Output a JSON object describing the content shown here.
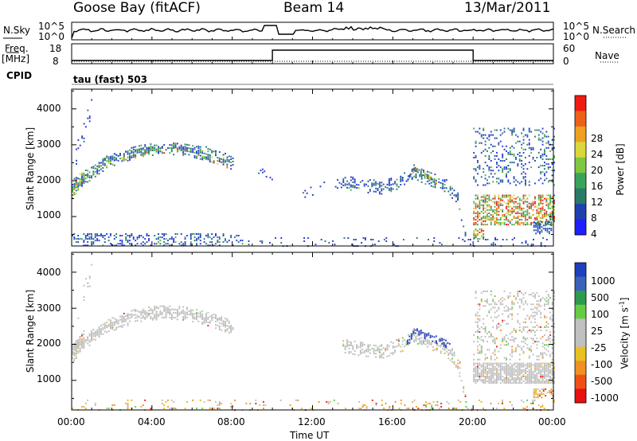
{
  "header": {
    "station": "Goose Bay (fitACF)",
    "beam": "Beam 14",
    "date": "13/Mar/2011"
  },
  "top_panels": {
    "nsky_label": "N.Sky",
    "nsky_ticks": [
      "10^5",
      "10^0"
    ],
    "nsearch_label": "N.Search",
    "nsearch_ticks": [
      "10^5",
      "10^0"
    ],
    "freq_label_1": "Freq.",
    "freq_label_2": "[MHz]",
    "freq_ticks": [
      "18",
      "8"
    ],
    "nave_label": "Nave",
    "nave_ticks": [
      "60",
      "0"
    ],
    "cpid_label": "CPID",
    "cpid_text": "tau (fast) 503"
  },
  "colorbars": {
    "power": {
      "label": "Power [dB]",
      "ticks": [
        "28",
        "24",
        "20",
        "16",
        "12",
        "8",
        "4"
      ],
      "colors": [
        "#1f1fff",
        "#2040b0",
        "#2a7a68",
        "#39a35a",
        "#7ec840",
        "#d9d83a",
        "#f0a020",
        "#ef6018",
        "#ee1c10"
      ]
    },
    "velocity": {
      "label": "Velocity [m s",
      "label_sup": "-1",
      "label_end": "]",
      "ticks": [
        "1000",
        "500",
        "100",
        "25",
        "-25",
        "-100",
        "-500",
        "-1000"
      ],
      "colors": [
        "#1f3fbf",
        "#3a62b8",
        "#2e9a4e",
        "#66cc44",
        "#c0c0c0",
        "#c0c0c0",
        "#e8c020",
        "#f09020",
        "#f05018",
        "#e81010"
      ]
    }
  },
  "axes": {
    "ylabel": "Slant Range [km]",
    "xlabel": "Time UT",
    "y_ticks": [
      1000,
      2000,
      3000,
      4000
    ],
    "x_ticks": [
      "00:00",
      "04:00",
      "08:00",
      "12:00",
      "16:00",
      "20:00",
      "00:00"
    ]
  },
  "chart_data": [
    {
      "type": "heatmap",
      "title": "",
      "xlabel": "",
      "ylabel": "Slant Range [km]",
      "x_range_hours": [
        0,
        24
      ],
      "ylim_km": [
        180,
        4550
      ],
      "colorbar": "Power [dB]",
      "regions": [
        {
          "kind": "band",
          "x": [
            0.0,
            0.5,
            1.0,
            1.5,
            2.0,
            2.5,
            3.0,
            3.5,
            4.0,
            4.5,
            5.0,
            5.5,
            6.0,
            6.5,
            7.0,
            7.5,
            8.0
          ],
          "y": [
            1900,
            2050,
            2250,
            2450,
            2600,
            2700,
            2800,
            2870,
            2900,
            2920,
            2920,
            2900,
            2850,
            2780,
            2700,
            2600,
            2500
          ],
          "half_width": 170,
          "density": 0.7,
          "weights": [
            0.3,
            0.35,
            0.25,
            0.1
          ]
        },
        {
          "kind": "band",
          "x": [
            0.0,
            0.3,
            0.6
          ],
          "y": [
            1750,
            1950,
            2200
          ],
          "half_width": 220,
          "density": 0.75,
          "weights": [
            0.1,
            0.25,
            0.35,
            0.3
          ]
        },
        {
          "kind": "band",
          "x": [
            0.1,
            1.5,
            3.5,
            6.0,
            8.0
          ],
          "y": [
            2000,
            2600,
            2950,
            3000,
            2700
          ],
          "half_width": 70,
          "density": 0.25,
          "weights": [
            0.6,
            0.3,
            0.1,
            0.0
          ]
        },
        {
          "kind": "band",
          "x": [
            0.2,
            0.6,
            1.0
          ],
          "y": [
            2700,
            3400,
            4200
          ],
          "half_width": 300,
          "density": 0.15,
          "weights": [
            0.9,
            0.1,
            0.0,
            0.0
          ]
        },
        {
          "kind": "band",
          "x": [
            13.5,
            14.5,
            15.5,
            16.5,
            17.0,
            17.5,
            18.5,
            19.0,
            19.4
          ],
          "y": [
            2000,
            1900,
            1850,
            2050,
            2300,
            2150,
            1950,
            1700,
            1350
          ],
          "half_width": 200,
          "density": 0.5,
          "weights": [
            0.55,
            0.35,
            0.1,
            0.0
          ]
        },
        {
          "kind": "band",
          "x": [
            16.7,
            17.0,
            17.5,
            18.2
          ],
          "y": [
            2050,
            2350,
            2200,
            1950
          ],
          "half_width": 80,
          "density": 0.7,
          "weights": [
            0.05,
            0.35,
            0.4,
            0.2
          ]
        },
        {
          "kind": "band",
          "x": [
            19.2,
            19.4,
            19.6
          ],
          "y": [
            1500,
            950,
            500
          ],
          "half_width": 100,
          "density": 0.6,
          "weights": [
            0.5,
            0.3,
            0.2,
            0.0
          ]
        },
        {
          "kind": "band",
          "x": [
            9.0,
            9.5,
            10.0
          ],
          "y": [
            2600,
            2300,
            2000
          ],
          "half_width": 200,
          "density": 0.1,
          "weights": [
            0.9,
            0.1,
            0.0,
            0.0
          ]
        },
        {
          "kind": "band",
          "x": [
            11.5,
            12.5,
            13.5
          ],
          "y": [
            1700,
            1850,
            1950
          ],
          "half_width": 150,
          "density": 0.12,
          "weights": [
            0.8,
            0.2,
            0.0,
            0.0
          ]
        },
        {
          "kind": "rect",
          "x": [
            20.0,
            24.0
          ],
          "y": [
            800,
            1650
          ],
          "density": 0.55,
          "weights": [
            0.0,
            0.1,
            0.3,
            0.6
          ]
        },
        {
          "kind": "rect",
          "x": [
            20.0,
            24.0
          ],
          "y": [
            1900,
            3500
          ],
          "density": 0.2,
          "weights": [
            0.55,
            0.35,
            0.1,
            0.0
          ]
        },
        {
          "kind": "rect",
          "x": [
            23.0,
            24.0
          ],
          "y": [
            550,
            900
          ],
          "density": 0.5,
          "weights": [
            0.7,
            0.3,
            0.0,
            0.0
          ]
        },
        {
          "kind": "rect",
          "x": [
            20.0,
            20.5
          ],
          "y": [
            400,
            700
          ],
          "density": 0.6,
          "weights": [
            0.0,
            0.2,
            0.3,
            0.5
          ]
        },
        {
          "kind": "rect",
          "x": [
            0.0,
            8.5
          ],
          "y": [
            220,
            550
          ],
          "density": 0.3,
          "weights": [
            0.6,
            0.3,
            0.1,
            0.0
          ]
        },
        {
          "kind": "rect",
          "x": [
            8.5,
            24.0
          ],
          "y": [
            200,
            450
          ],
          "density": 0.08,
          "weights": [
            0.8,
            0.2,
            0.0,
            0.0
          ]
        }
      ]
    },
    {
      "type": "heatmap",
      "title": "",
      "xlabel": "Time UT",
      "ylabel": "Slant Range [km]",
      "x_range_hours": [
        0,
        24
      ],
      "ylim_km": [
        180,
        4550
      ],
      "colorbar": "Velocity [m s-1]",
      "regions": [
        {
          "kind": "band",
          "x": [
            0.0,
            0.5,
            1.0,
            1.5,
            2.0,
            2.5,
            3.0,
            3.5,
            4.0,
            4.5,
            5.0,
            5.5,
            6.0,
            6.5,
            7.0,
            7.5,
            8.0
          ],
          "y": [
            1900,
            2050,
            2250,
            2450,
            2600,
            2700,
            2800,
            2870,
            2900,
            2920,
            2920,
            2900,
            2850,
            2780,
            2700,
            2600,
            2500
          ],
          "half_width": 200,
          "density": 0.75,
          "weights": [
            0.95,
            0.03,
            0.02,
            0.0
          ]
        },
        {
          "kind": "band",
          "x": [
            0.0,
            0.3,
            0.6
          ],
          "y": [
            1750,
            1950,
            2200
          ],
          "half_width": 240,
          "density": 0.75,
          "weights": [
            0.95,
            0.05,
            0.0,
            0.0
          ]
        },
        {
          "kind": "band",
          "x": [
            0.2,
            0.6,
            1.0
          ],
          "y": [
            2700,
            3400,
            4200
          ],
          "half_width": 300,
          "density": 0.2,
          "weights": [
            0.9,
            0.1,
            0.0,
            0.0
          ]
        },
        {
          "kind": "band",
          "x": [
            13.5,
            14.5,
            15.5,
            16.5,
            17.0,
            17.5,
            18.5,
            19.0,
            19.4
          ],
          "y": [
            2000,
            1900,
            1850,
            2050,
            2300,
            2150,
            1950,
            1700,
            1350
          ],
          "half_width": 200,
          "density": 0.55,
          "weights": [
            0.9,
            0.05,
            0.05,
            0.0
          ]
        },
        {
          "kind": "band",
          "x": [
            16.7,
            17.0,
            17.5,
            18.2,
            18.8
          ],
          "y": [
            2050,
            2400,
            2300,
            2150,
            2000
          ],
          "half_width": 100,
          "density": 0.8,
          "weights": [
            0.1,
            0.0,
            0.0,
            0.9
          ]
        },
        {
          "kind": "band",
          "x": [
            19.2,
            19.4,
            19.6
          ],
          "y": [
            1500,
            950,
            500
          ],
          "half_width": 100,
          "density": 0.6,
          "weights": [
            0.7,
            0.3,
            0.0,
            0.0
          ]
        },
        {
          "kind": "rect",
          "x": [
            20.0,
            24.0
          ],
          "y": [
            950,
            1500
          ],
          "density": 0.8,
          "weights": [
            0.95,
            0.05,
            0.0,
            0.0
          ]
        },
        {
          "kind": "rect",
          "x": [
            20.0,
            24.0
          ],
          "y": [
            1600,
            3500
          ],
          "density": 0.22,
          "weights": [
            0.85,
            0.1,
            0.05,
            0.0
          ]
        },
        {
          "kind": "rect",
          "x": [
            23.0,
            24.0
          ],
          "y": [
            550,
            800
          ],
          "density": 0.5,
          "weights": [
            0.3,
            0.7,
            0.0,
            0.0
          ]
        },
        {
          "kind": "rect",
          "x": [
            0.0,
            24.0
          ],
          "y": [
            200,
            500
          ],
          "density": 0.12,
          "weights": [
            0.3,
            0.6,
            0.1,
            0.0
          ]
        }
      ]
    }
  ]
}
